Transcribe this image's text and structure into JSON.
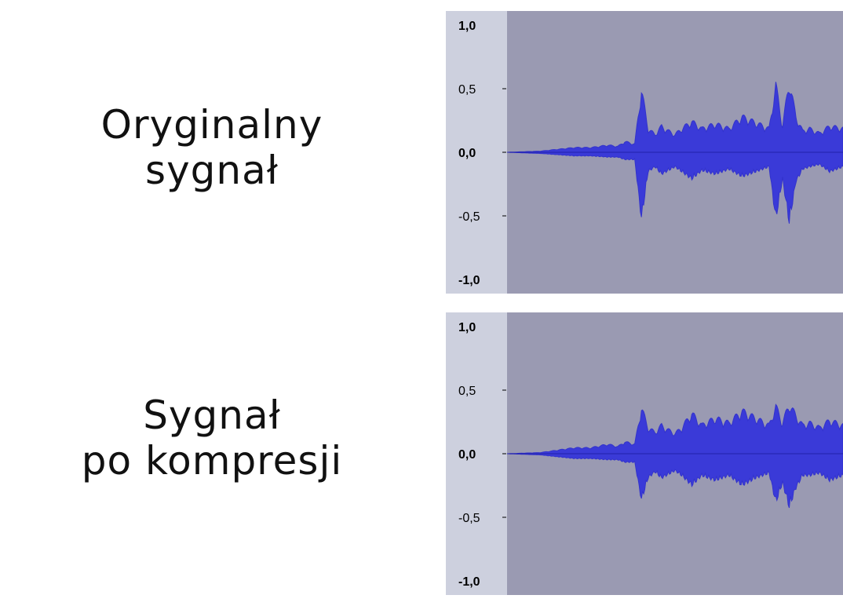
{
  "labels": {
    "original_line1": "Oryginalny",
    "original_line2": "sygnał",
    "compressed_line1": "Sygnał",
    "compressed_line2": "po kompresji"
  },
  "colors": {
    "ruler_bg": "#cdd0de",
    "plot_bg": "#9a9ab2",
    "waveform": "#3a3ad8",
    "waveform_outer": "#3333cc",
    "zero_line": "#2222aa"
  },
  "chart_data": [
    {
      "type": "area",
      "title": "",
      "xlabel": "",
      "ylabel": "",
      "ylim": [
        -1.0,
        1.0
      ],
      "y_ticks": [
        "1,0",
        "0,5",
        "0,0",
        "-0,5",
        "-1,0"
      ],
      "y_tick_values": [
        1.0,
        0.5,
        0.0,
        -0.5,
        -1.0
      ],
      "grid": false,
      "series": [
        {
          "x": [
            0,
            0.1,
            0.2,
            0.25,
            0.3,
            0.33,
            0.35,
            0.38,
            0.4,
            0.42,
            0.44,
            0.46,
            0.48,
            0.5,
            0.52,
            0.55,
            0.58,
            0.62,
            0.66,
            0.7,
            0.74,
            0.78,
            0.8,
            0.82,
            0.84,
            0.86,
            0.88,
            0.9,
            0.93,
            0.96,
            1.0
          ],
          "upper": [
            0.0,
            0.01,
            0.04,
            0.04,
            0.06,
            0.05,
            0.09,
            0.07,
            0.53,
            0.2,
            0.15,
            0.22,
            0.18,
            0.15,
            0.2,
            0.26,
            0.2,
            0.24,
            0.2,
            0.3,
            0.25,
            0.2,
            0.57,
            0.22,
            0.6,
            0.3,
            0.18,
            0.2,
            0.16,
            0.22,
            0.2
          ],
          "lower": [
            0.0,
            -0.01,
            -0.03,
            -0.03,
            -0.04,
            -0.04,
            -0.06,
            -0.06,
            -0.55,
            -0.16,
            -0.12,
            -0.18,
            -0.15,
            -0.12,
            -0.16,
            -0.22,
            -0.15,
            -0.18,
            -0.14,
            -0.2,
            -0.16,
            -0.12,
            -0.55,
            -0.22,
            -0.58,
            -0.24,
            -0.14,
            -0.12,
            -0.1,
            -0.16,
            -0.12
          ]
        }
      ]
    },
    {
      "type": "area",
      "title": "",
      "xlabel": "",
      "ylabel": "",
      "ylim": [
        -1.0,
        1.0
      ],
      "y_ticks": [
        "1,0",
        "0,5",
        "0,0",
        "-0,5",
        "-1,0"
      ],
      "y_tick_values": [
        1.0,
        0.5,
        0.0,
        -0.5,
        -1.0
      ],
      "grid": false,
      "series": [
        {
          "x": [
            0,
            0.1,
            0.2,
            0.25,
            0.3,
            0.33,
            0.35,
            0.38,
            0.4,
            0.42,
            0.44,
            0.46,
            0.48,
            0.5,
            0.52,
            0.55,
            0.58,
            0.62,
            0.66,
            0.7,
            0.74,
            0.78,
            0.8,
            0.82,
            0.84,
            0.86,
            0.88,
            0.9,
            0.93,
            0.96,
            1.0
          ],
          "upper": [
            0.0,
            0.01,
            0.05,
            0.05,
            0.08,
            0.06,
            0.1,
            0.08,
            0.39,
            0.22,
            0.18,
            0.24,
            0.2,
            0.17,
            0.22,
            0.34,
            0.24,
            0.3,
            0.26,
            0.36,
            0.3,
            0.24,
            0.4,
            0.26,
            0.42,
            0.32,
            0.24,
            0.26,
            0.22,
            0.28,
            0.24
          ],
          "lower": [
            0.0,
            -0.01,
            -0.04,
            -0.04,
            -0.05,
            -0.05,
            -0.07,
            -0.07,
            -0.38,
            -0.2,
            -0.15,
            -0.2,
            -0.17,
            -0.14,
            -0.18,
            -0.26,
            -0.18,
            -0.22,
            -0.18,
            -0.26,
            -0.2,
            -0.16,
            -0.4,
            -0.24,
            -0.44,
            -0.28,
            -0.18,
            -0.18,
            -0.16,
            -0.22,
            -0.18
          ]
        }
      ]
    }
  ]
}
